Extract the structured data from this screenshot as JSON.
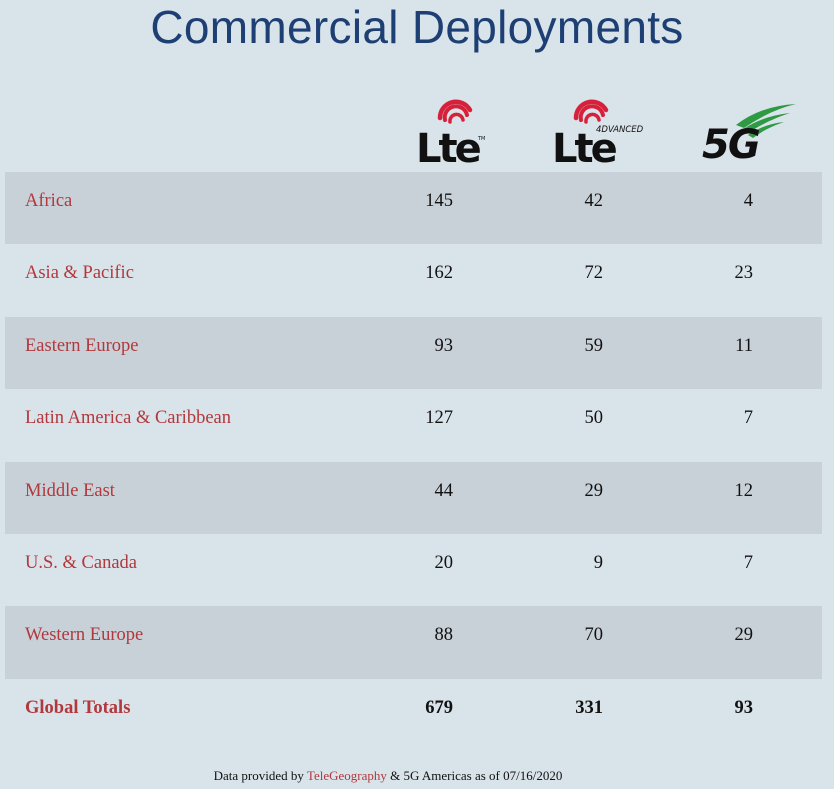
{
  "title": "Commercial Deployments",
  "columns": [
    {
      "logo": "lte-logo",
      "label": "Lte"
    },
    {
      "logo": "lte-advanced-logo",
      "label": "Lte",
      "sublabel": "4DVANCED"
    },
    {
      "logo": "5g-logo",
      "label": "5G"
    }
  ],
  "rows": [
    {
      "region": "Africa",
      "lte": "145",
      "lte_advanced": "42",
      "five_g": "4"
    },
    {
      "region": "Asia & Pacific",
      "lte": "162",
      "lte_advanced": "72",
      "five_g": "23"
    },
    {
      "region": "Eastern Europe",
      "lte": "93",
      "lte_advanced": "59",
      "five_g": "11"
    },
    {
      "region": "Latin America & Caribbean",
      "lte": "127",
      "lte_advanced": "50",
      "five_g": "7"
    },
    {
      "region": "Middle East",
      "lte": "44",
      "lte_advanced": "29",
      "five_g": "12"
    },
    {
      "region": "U.S. & Canada",
      "lte": "20",
      "lte_advanced": "9",
      "five_g": "7"
    },
    {
      "region": "Western Europe",
      "lte": "88",
      "lte_advanced": "70",
      "five_g": "29"
    }
  ],
  "totals": {
    "region": "Global Totals",
    "lte": "679",
    "lte_advanced": "331",
    "five_g": "93"
  },
  "footer": {
    "prefix": "Data provided by",
    "link": "TeleGeography",
    "suffix": "& 5G Americas as of 07/16/2020"
  },
  "colors": {
    "background": "#d9e3ea",
    "row_shade": "#c9d1d8",
    "title": "#1d3f73",
    "region_text": "#b1383c",
    "lte_arc": "#d7203a",
    "five_g_arc": "#2e9a44"
  }
}
